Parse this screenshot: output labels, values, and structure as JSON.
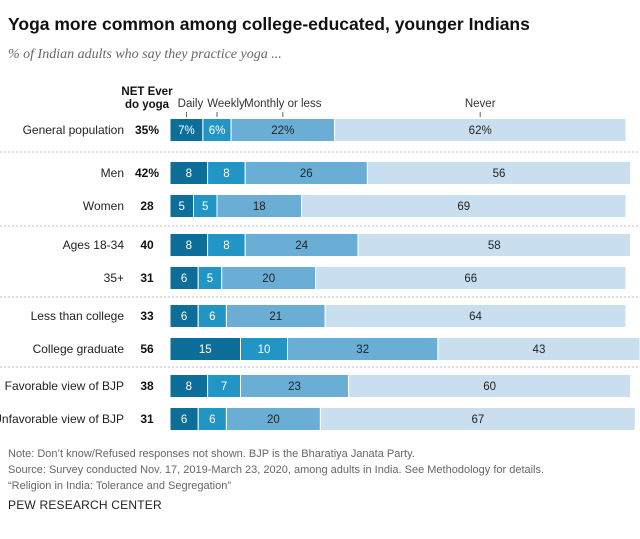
{
  "title": "Yoga more common among college-educated, younger Indians",
  "subtitle": "% of Indian adults who say they practice yoga ...",
  "chart_data": {
    "type": "stacked-bar",
    "net_header": [
      "NET Ever",
      "do yoga"
    ],
    "series_names": [
      "Daily",
      "Weekly",
      "Monthly or less",
      "Never"
    ],
    "series_colors": [
      "#0d6e99",
      "#2196c4",
      "#6aaed6",
      "#c9deee"
    ],
    "groups": [
      {
        "rows": [
          {
            "label": "General population",
            "net": "35%",
            "values": [
              7,
              6,
              22,
              62
            ],
            "labels": [
              "7%",
              "6%",
              "22%",
              "62%"
            ]
          }
        ]
      },
      {
        "rows": [
          {
            "label": "Men",
            "net": "42%",
            "values": [
              8,
              8,
              26,
              56
            ],
            "labels": [
              "8",
              "8",
              "26",
              "56"
            ]
          },
          {
            "label": "Women",
            "net": "28",
            "values": [
              5,
              5,
              18,
              69
            ],
            "labels": [
              "5",
              "5",
              "18",
              "69"
            ]
          }
        ]
      },
      {
        "rows": [
          {
            "label": "Ages 18-34",
            "net": "40",
            "values": [
              8,
              8,
              24,
              58
            ],
            "labels": [
              "8",
              "8",
              "24",
              "58"
            ]
          },
          {
            "label": "35+",
            "net": "31",
            "values": [
              6,
              5,
              20,
              66
            ],
            "labels": [
              "6",
              "5",
              "20",
              "66"
            ]
          }
        ]
      },
      {
        "rows": [
          {
            "label": "Less than college",
            "net": "33",
            "values": [
              6,
              6,
              21,
              64
            ],
            "labels": [
              "6",
              "6",
              "21",
              "64"
            ]
          },
          {
            "label": "College graduate",
            "net": "56",
            "values": [
              15,
              10,
              32,
              43
            ],
            "labels": [
              "15",
              "10",
              "32",
              "43"
            ]
          }
        ]
      },
      {
        "rows": [
          {
            "label": "Favorable view of BJP",
            "net": "38",
            "values": [
              8,
              7,
              23,
              60
            ],
            "labels": [
              "8",
              "7",
              "23",
              "60"
            ]
          },
          {
            "label": "Unfavorable view of BJP",
            "net": "31",
            "values": [
              6,
              6,
              20,
              67
            ],
            "labels": [
              "6",
              "6",
              "20",
              "67"
            ]
          }
        ]
      }
    ]
  },
  "notes": {
    "note": "Note: Don’t know/Refused responses not shown. BJP is the Bharatiya Janata Party.",
    "source": "Source: Survey conducted Nov. 17, 2019-March 23, 2020, among adults in India. See Methodology for details.",
    "report": "“Religion in India: Tolerance and Segregation”"
  },
  "org": "PEW RESEARCH CENTER"
}
